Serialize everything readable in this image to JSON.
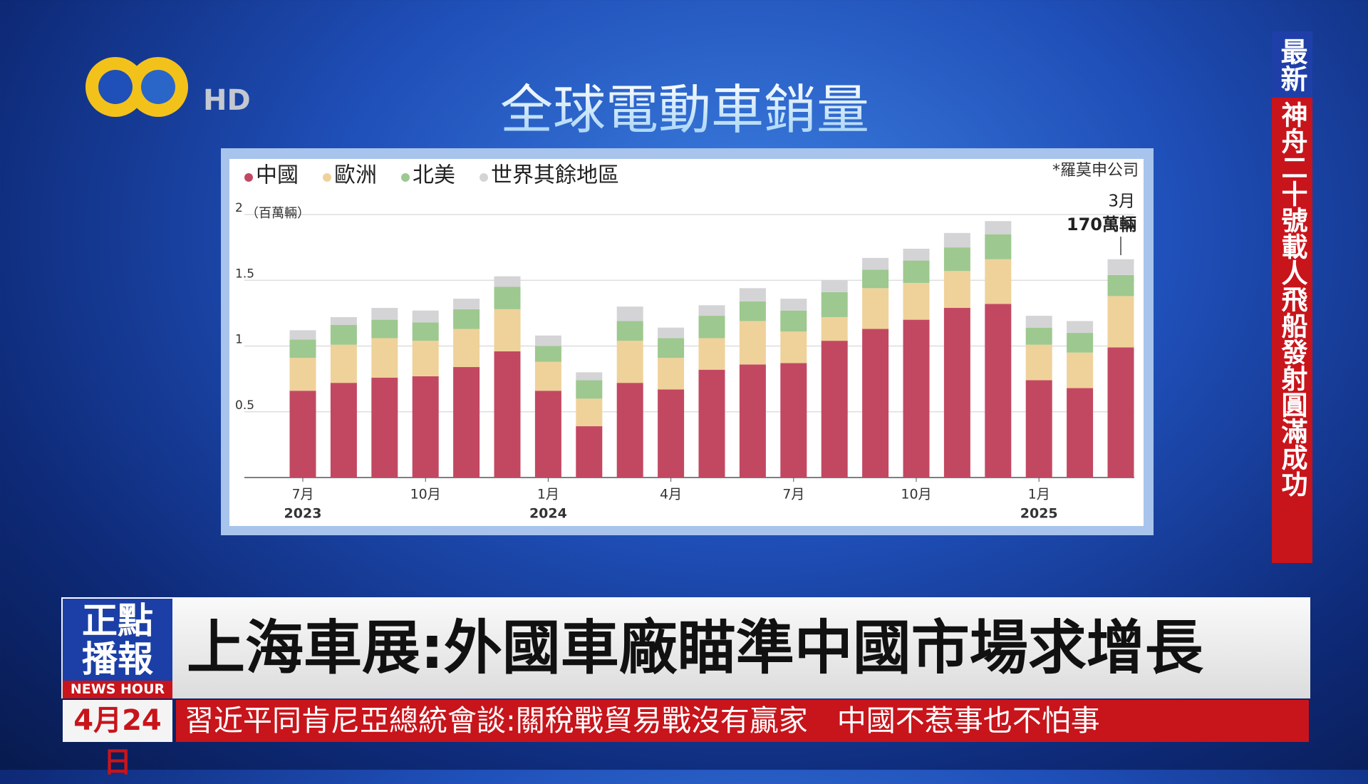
{
  "chart_data": {
    "type": "stacked_bar",
    "title": "全球電動車銷量",
    "source": "*羅莫申公司",
    "y_unit": "（百萬輛）",
    "categories": [
      "7月",
      null,
      null,
      "10月",
      null,
      null,
      "1月",
      null,
      null,
      "4月",
      null,
      null,
      "7月",
      null,
      null,
      "10月",
      null,
      null,
      "1月",
      null,
      null
    ],
    "category_years": [
      "2023",
      null,
      null,
      null,
      null,
      null,
      "2024",
      null,
      null,
      null,
      null,
      null,
      null,
      null,
      null,
      null,
      null,
      null,
      "2025",
      null,
      null
    ],
    "series": [
      {
        "name": "中國",
        "color": "#c24862",
        "values": [
          0.66,
          0.72,
          0.76,
          0.77,
          0.84,
          0.96,
          0.66,
          0.39,
          0.72,
          0.67,
          0.82,
          0.86,
          0.87,
          1.04,
          1.13,
          1.2,
          1.29,
          1.32,
          0.74,
          0.68,
          0.99
        ]
      },
      {
        "name": "歐洲",
        "color": "#efd29a",
        "values": [
          0.25,
          0.29,
          0.3,
          0.27,
          0.29,
          0.32,
          0.22,
          0.21,
          0.32,
          0.24,
          0.24,
          0.33,
          0.24,
          0.18,
          0.31,
          0.28,
          0.28,
          0.34,
          0.27,
          0.27,
          0.39
        ]
      },
      {
        "name": "北美",
        "color": "#9dc88f",
        "values": [
          0.14,
          0.15,
          0.14,
          0.14,
          0.15,
          0.17,
          0.12,
          0.14,
          0.15,
          0.15,
          0.17,
          0.15,
          0.16,
          0.19,
          0.14,
          0.17,
          0.18,
          0.19,
          0.13,
          0.15,
          0.16
        ]
      },
      {
        "name": "世界其餘地區",
        "color": "#d4d4d6",
        "values": [
          0.07,
          0.06,
          0.09,
          0.09,
          0.08,
          0.08,
          0.08,
          0.06,
          0.11,
          0.08,
          0.08,
          0.1,
          0.09,
          0.09,
          0.09,
          0.09,
          0.11,
          0.1,
          0.09,
          0.09,
          0.12
        ]
      }
    ],
    "ylim": [
      0,
      2
    ],
    "yticks": [
      0.5,
      1,
      1.5,
      2
    ],
    "grid": true,
    "annotation": {
      "month": "3月",
      "text": "170萬輛"
    }
  },
  "broadcast": {
    "logo": "HD",
    "side_tag": "最新",
    "side_news": "神舟二十號載人飛船發射圓滿成功",
    "program_top": "正點",
    "program_bottom": "播報",
    "program_en": "NEWS HOUR",
    "headline": "上海車展:外國車廠瞄準中國市場求增長",
    "date": "4月24日",
    "ticker": "習近平同肯尼亞總統會談:關稅戰貿易戰沒有贏家　中國不惹事也不怕事"
  }
}
